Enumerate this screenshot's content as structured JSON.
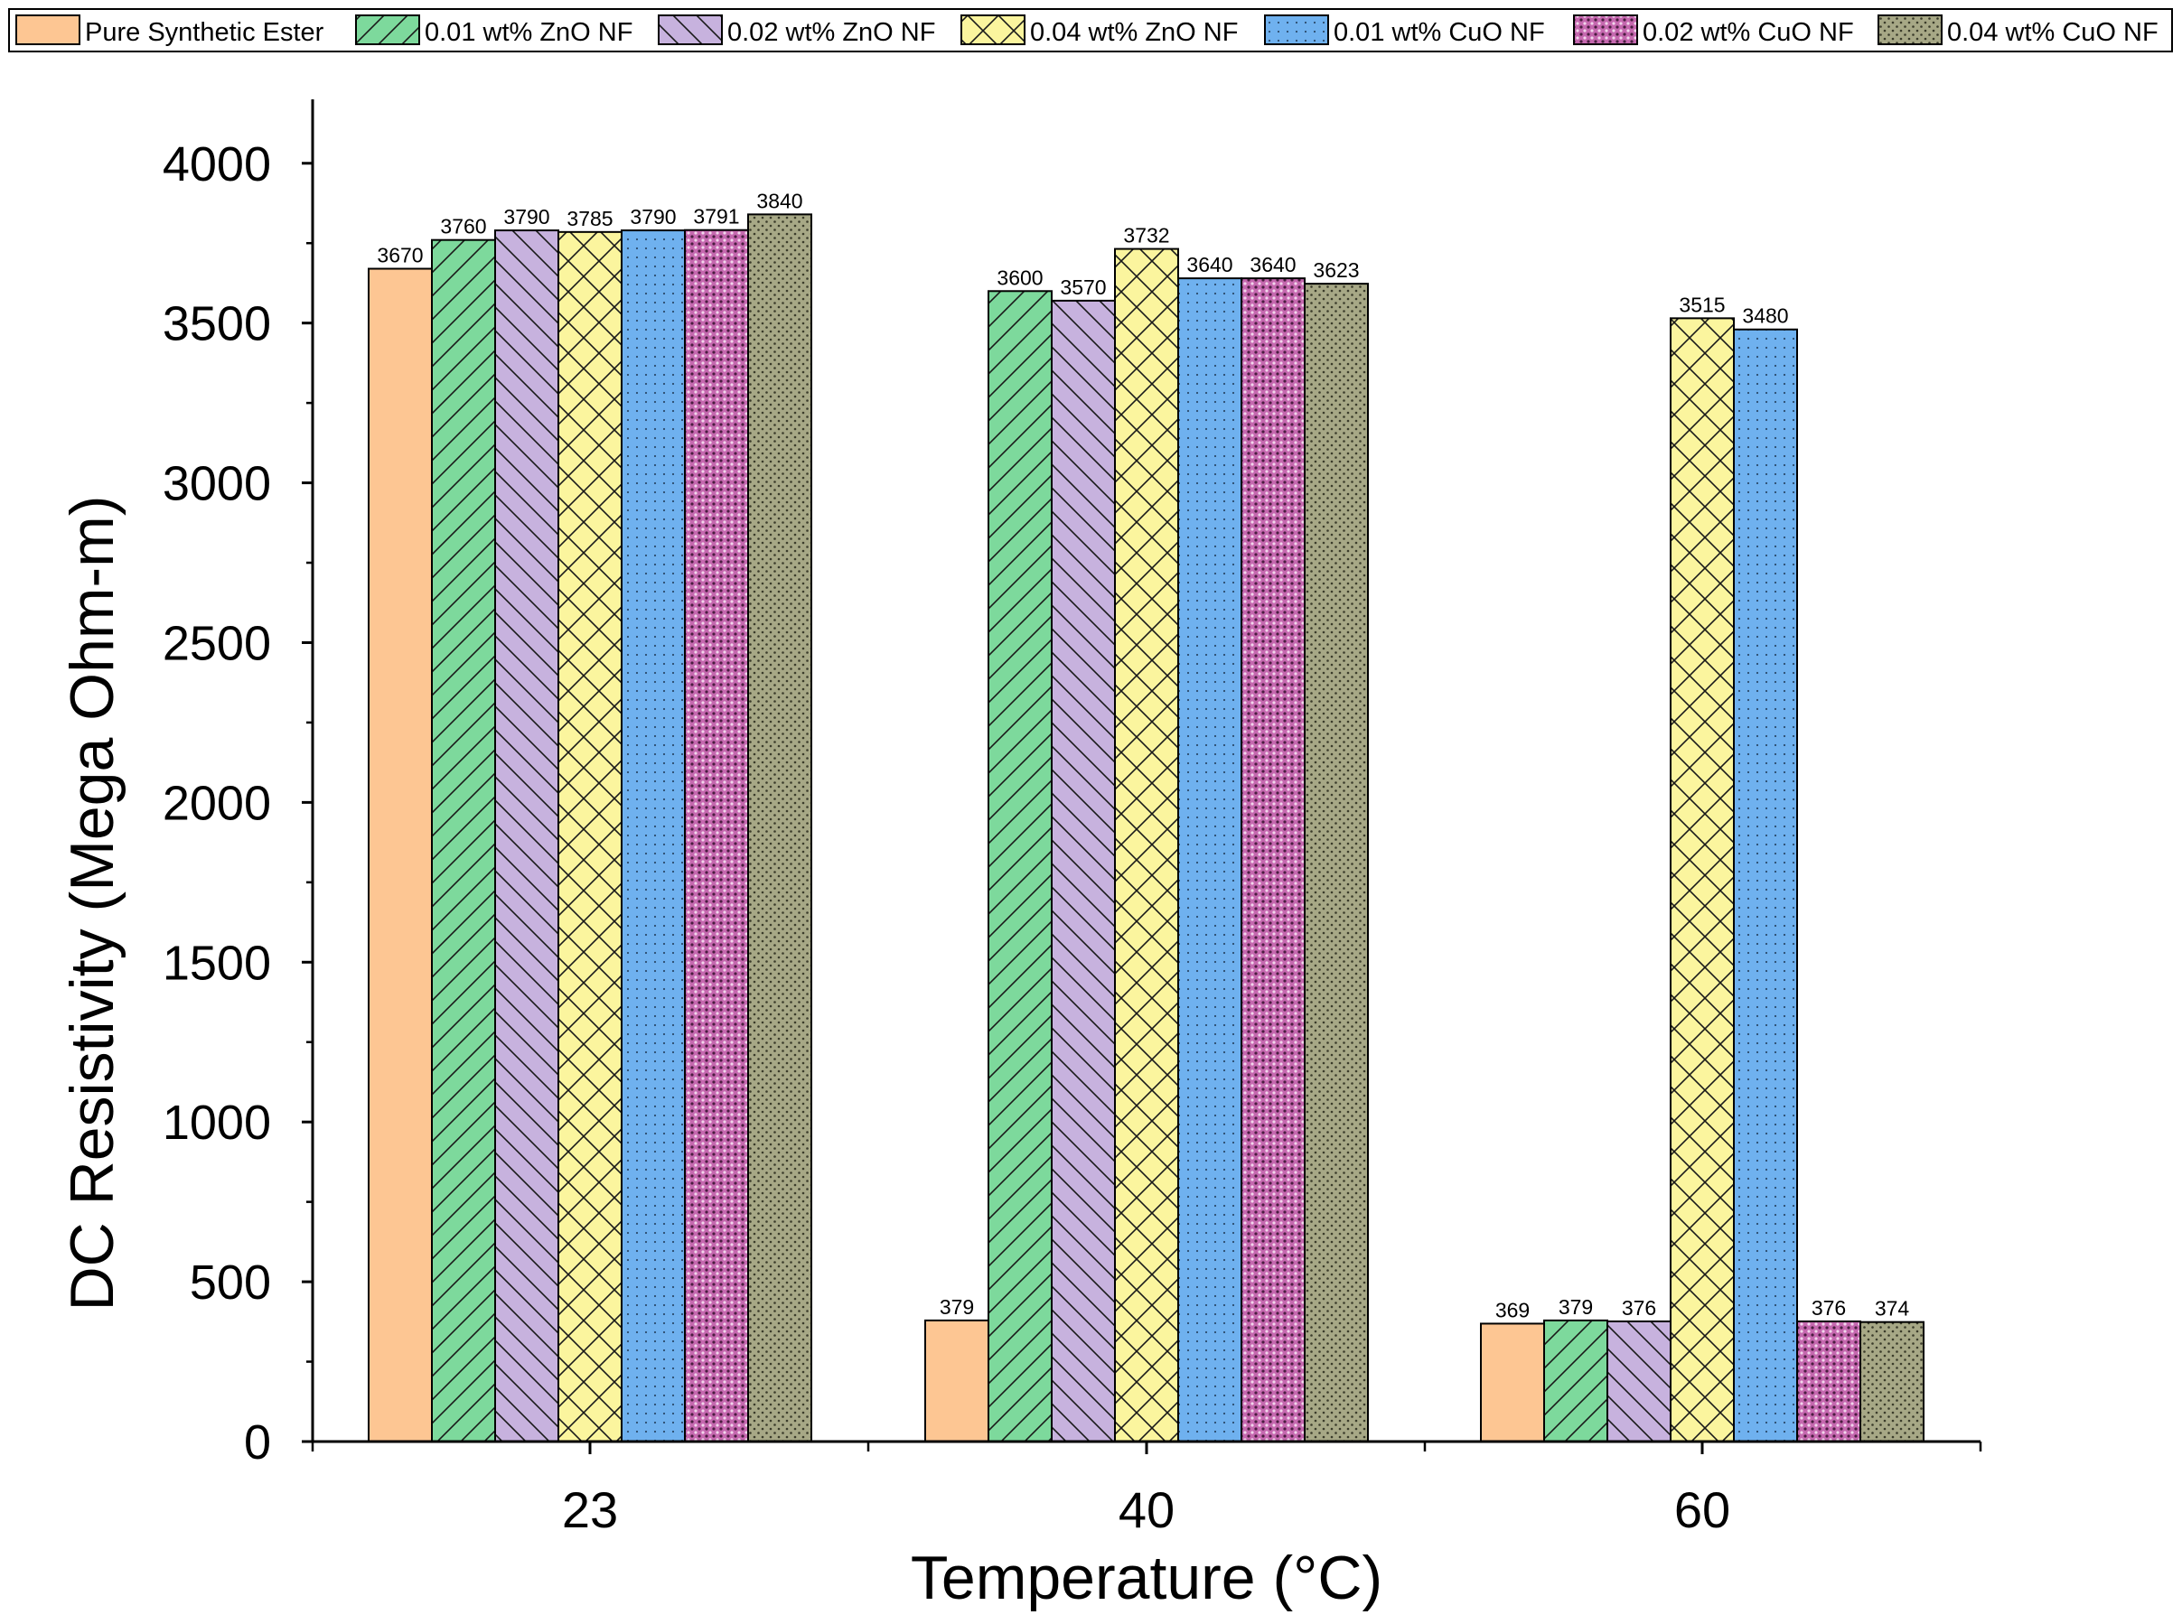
{
  "chart_data": {
    "type": "bar",
    "title": "",
    "xlabel": "Temperature (°C)",
    "ylabel": "DC Resistivity (Mega Ohm-m)",
    "categories": [
      "23",
      "40",
      "60"
    ],
    "ylim": [
      0,
      4200
    ],
    "yticks": [
      0,
      500,
      1000,
      1500,
      2000,
      2500,
      3000,
      3500,
      4000
    ],
    "legend_position": "top",
    "series": [
      {
        "name": "Pure Synthetic Ester",
        "values": [
          3670,
          379,
          369
        ],
        "labels": [
          "3670",
          "379",
          "369"
        ],
        "color": "#FDC693",
        "pattern": "none"
      },
      {
        "name": "0.01 wt% ZnO NF",
        "values": [
          3760,
          3600,
          379
        ],
        "labels": [
          "3760",
          "3600",
          "379"
        ],
        "color": "#7DD99C",
        "pattern": "forward-diagonal"
      },
      {
        "name": "0.02 wt% ZnO NF",
        "values": [
          3790,
          3570,
          376
        ],
        "labels": [
          "3790",
          "3570",
          "376"
        ],
        "color": "#C7B2DE",
        "pattern": "back-diagonal"
      },
      {
        "name": "0.04 wt% ZnO NF",
        "values": [
          3785,
          3732,
          3515
        ],
        "labels": [
          "3785",
          "3732",
          "3515"
        ],
        "color": "#FBF59E",
        "pattern": "crosshatch"
      },
      {
        "name": "0.01 wt% CuO NF",
        "values": [
          3790,
          3640,
          3480
        ],
        "labels": [
          "3790",
          "3640",
          "3480"
        ],
        "color": "#6FB1EF",
        "pattern": "fine-dots"
      },
      {
        "name": "0.02 wt% CuO NF",
        "values": [
          3791,
          3640,
          376
        ],
        "labels": [
          "3791",
          "3640",
          "376"
        ],
        "color": "#C568AF",
        "pattern": "dense-dots"
      },
      {
        "name": "0.04 wt% CuO NF",
        "values": [
          3840,
          3623,
          374
        ],
        "labels": [
          "3840",
          "3623",
          "374"
        ],
        "color": "#A7A886",
        "pattern": "dots"
      }
    ]
  }
}
